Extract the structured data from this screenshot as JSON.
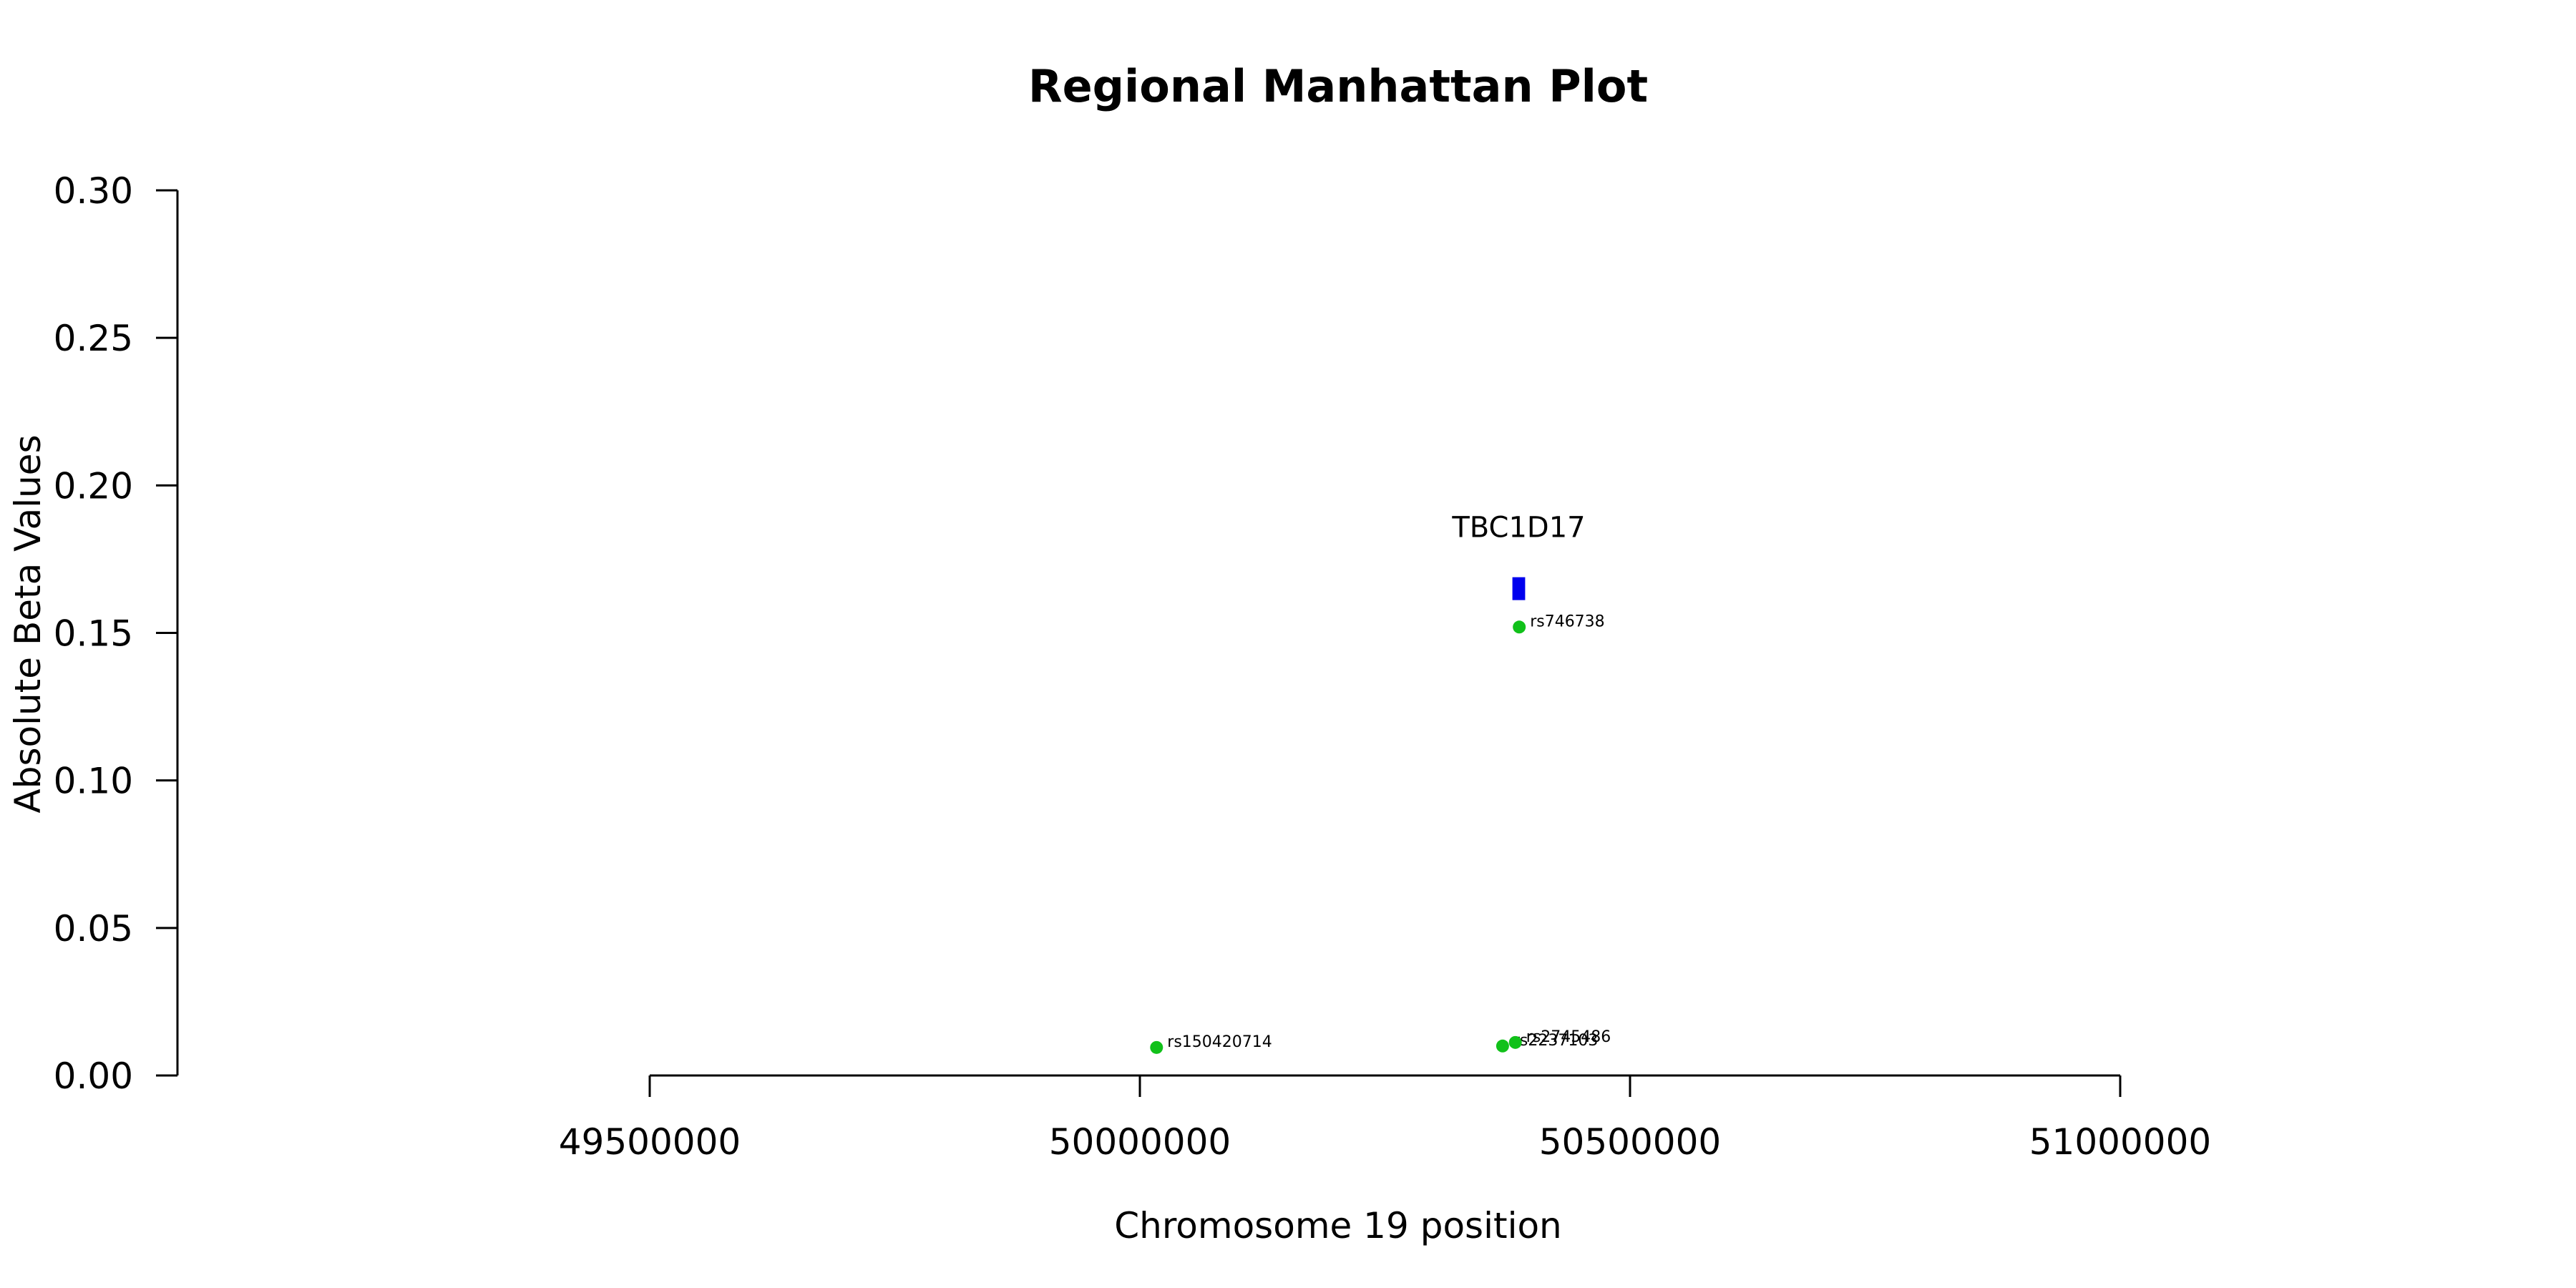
{
  "chart_data": {
    "type": "scatter",
    "title": "Regional Manhattan Plot",
    "xlabel": "Chromosome 19 position",
    "ylabel": "Absolute Beta Values",
    "xlim": [
      49500000,
      51000000
    ],
    "ylim": [
      0,
      0.3
    ],
    "xticks": [
      49500000,
      50000000,
      50500000,
      51000000
    ],
    "yticks": [
      0.0,
      0.05,
      0.1,
      0.15,
      0.2,
      0.25,
      0.3
    ],
    "xtick_labels": [
      "49500000",
      "50000000",
      "50500000",
      "51000000"
    ],
    "ytick_labels": [
      "0.00",
      "0.05",
      "0.10",
      "0.15",
      "0.20",
      "0.25",
      "0.30"
    ],
    "grid": false,
    "point_color": "#11c11a",
    "gene_color": "#0000ee",
    "points": [
      {
        "label": "rs150420714",
        "x": 50017000,
        "y": 0.0095
      },
      {
        "label": "rs2237103",
        "x": 50370000,
        "y": 0.01
      },
      {
        "label": "rs2745486",
        "x": 50383000,
        "y": 0.0112
      },
      {
        "label": "rs746738",
        "x": 50387000,
        "y": 0.152
      }
    ],
    "genes": [
      {
        "name": "TBC1D17",
        "start": 50380000,
        "end": 50393000,
        "y": 0.165
      }
    ]
  }
}
